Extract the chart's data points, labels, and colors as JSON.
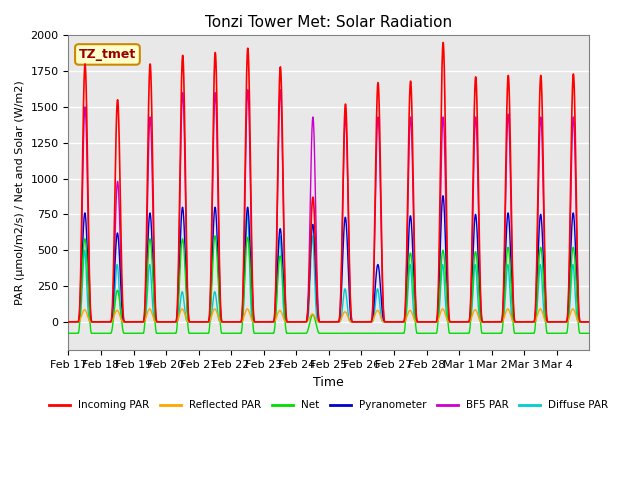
{
  "title": "Tonzi Tower Met: Solar Radiation",
  "xlabel": "Time",
  "ylabel": "PAR (μmol/m2/s) / Net and Solar (W/m2)",
  "ylim": [
    -200,
    2000
  ],
  "annotation": "TZ_tmet",
  "background_color": "#e8e8e8",
  "grid_color": "white",
  "series": [
    {
      "name": "Incoming PAR",
      "color": "#ff0000"
    },
    {
      "name": "Reflected PAR",
      "color": "#ffa500"
    },
    {
      "name": "Net",
      "color": "#00dd00"
    },
    {
      "name": "Pyranometer",
      "color": "#0000cc"
    },
    {
      "name": "BF5 PAR",
      "color": "#cc00cc"
    },
    {
      "name": "Diffuse PAR",
      "color": "#00cccc"
    }
  ],
  "xtick_labels": [
    "Feb 17",
    "Feb 18",
    "Feb 19",
    "Feb 20",
    "Feb 21",
    "Feb 22",
    "Feb 23",
    "Feb 24",
    "Feb 25",
    "Feb 26",
    "Feb 27",
    "Feb 28",
    "Mar 1",
    "Mar 2",
    "Mar 3",
    "Mar 4"
  ],
  "num_days": 16,
  "pts_per_day": 288,
  "peak_incoming": [
    1800,
    1550,
    1800,
    1860,
    1880,
    1910,
    1780,
    870,
    1520,
    1670,
    1680,
    1950,
    1710,
    1720,
    1720,
    1730
  ],
  "peak_reflected": [
    85,
    80,
    90,
    90,
    90,
    90,
    80,
    55,
    70,
    80,
    80,
    90,
    85,
    90,
    90,
    90
  ],
  "peak_net": [
    580,
    220,
    580,
    580,
    600,
    590,
    460,
    50,
    -80,
    -80,
    480,
    500,
    490,
    520,
    520,
    520
  ],
  "peak_pyranometer": [
    760,
    620,
    760,
    800,
    800,
    800,
    650,
    680,
    730,
    400,
    740,
    880,
    750,
    760,
    750,
    760
  ],
  "peak_bf5par": [
    1500,
    980,
    1430,
    1600,
    1600,
    1620,
    1620,
    1430,
    1430,
    1430,
    1430,
    1430,
    1430,
    1450,
    1430,
    1430
  ],
  "peak_diffuse": [
    500,
    400,
    400,
    210,
    210,
    760,
    600,
    600,
    230,
    230,
    400,
    400,
    400,
    400,
    400,
    400
  ],
  "night_net": -80,
  "day_start": 7.0,
  "day_end": 17.5,
  "peak_sharpness": 4.0
}
